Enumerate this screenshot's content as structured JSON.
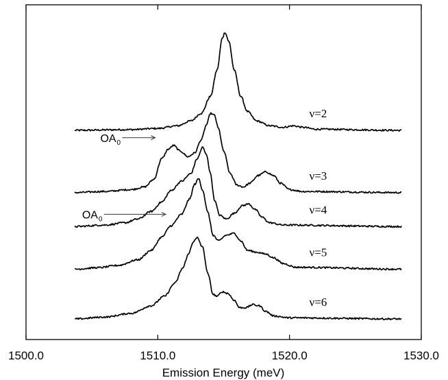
{
  "chart_data": {
    "type": "line",
    "title": "",
    "xlabel": "Emission Energy (meV)",
    "ylabel": "",
    "xlim": [
      1500.0,
      1530.0
    ],
    "x_ticks": [
      "1500.0",
      "1510.0",
      "1520.0",
      "1530.0"
    ],
    "x_tick_values": [
      1500.0,
      1510.0,
      1520.0,
      1530.0
    ],
    "grid": false,
    "legend": "none",
    "line_color": "#000000",
    "series": [
      {
        "name": "ν=2",
        "baseline": 5.0,
        "points": [
          [
            1503.7,
            0
          ],
          [
            1508.0,
            0.02
          ],
          [
            1510.0,
            0.05
          ],
          [
            1511.5,
            0.12
          ],
          [
            1512.5,
            0.25
          ],
          [
            1513.3,
            0.45
          ],
          [
            1514.0,
            0.9
          ],
          [
            1514.5,
            1.6
          ],
          [
            1514.9,
            2.45
          ],
          [
            1515.1,
            2.6
          ],
          [
            1515.4,
            2.35
          ],
          [
            1515.8,
            1.6
          ],
          [
            1516.3,
            0.9
          ],
          [
            1516.8,
            0.5
          ],
          [
            1517.5,
            0.25
          ],
          [
            1518.5,
            0.12
          ],
          [
            1519.5,
            0.08
          ],
          [
            1520.3,
            0.12
          ],
          [
            1521.0,
            0.08
          ],
          [
            1522.0,
            0.03
          ],
          [
            1528.5,
            0
          ]
        ]
      },
      {
        "name": "ν=3",
        "baseline": 3.35,
        "points": [
          [
            1503.7,
            0
          ],
          [
            1506.0,
            0.03
          ],
          [
            1508.0,
            0.08
          ],
          [
            1509.0,
            0.15
          ],
          [
            1509.7,
            0.35
          ],
          [
            1510.3,
            0.9
          ],
          [
            1510.8,
            1.15
          ],
          [
            1511.2,
            1.25
          ],
          [
            1511.7,
            1.1
          ],
          [
            1512.3,
            0.95
          ],
          [
            1512.8,
            1.05
          ],
          [
            1513.3,
            1.4
          ],
          [
            1513.7,
            1.8
          ],
          [
            1514.0,
            2.1
          ],
          [
            1514.3,
            2.05
          ],
          [
            1514.6,
            1.7
          ],
          [
            1515.0,
            1.1
          ],
          [
            1515.5,
            0.5
          ],
          [
            1516.0,
            0.2
          ],
          [
            1516.5,
            0.15
          ],
          [
            1517.0,
            0.25
          ],
          [
            1517.6,
            0.45
          ],
          [
            1518.2,
            0.55
          ],
          [
            1518.8,
            0.45
          ],
          [
            1519.3,
            0.25
          ],
          [
            1520.0,
            0.08
          ],
          [
            1521.0,
            0.03
          ],
          [
            1528.5,
            0
          ]
        ]
      },
      {
        "name": "ν=4",
        "baseline": 2.45,
        "points": [
          [
            1503.7,
            0
          ],
          [
            1506.0,
            0.04
          ],
          [
            1507.5,
            0.1
          ],
          [
            1508.5,
            0.2
          ],
          [
            1509.5,
            0.4
          ],
          [
            1510.3,
            0.65
          ],
          [
            1511.0,
            0.95
          ],
          [
            1511.8,
            1.2
          ],
          [
            1512.5,
            1.4
          ],
          [
            1513.0,
            1.8
          ],
          [
            1513.4,
            2.1
          ],
          [
            1513.7,
            1.9
          ],
          [
            1514.0,
            1.4
          ],
          [
            1514.3,
            0.7
          ],
          [
            1514.7,
            0.3
          ],
          [
            1515.2,
            0.2
          ],
          [
            1515.8,
            0.35
          ],
          [
            1516.4,
            0.55
          ],
          [
            1516.9,
            0.6
          ],
          [
            1517.4,
            0.45
          ],
          [
            1517.9,
            0.25
          ],
          [
            1518.5,
            0.1
          ],
          [
            1519.5,
            0.04
          ],
          [
            1528.5,
            0
          ]
        ]
      },
      {
        "name": "ν=5",
        "baseline": 1.32,
        "points": [
          [
            1503.7,
            0
          ],
          [
            1505.5,
            0.04
          ],
          [
            1507.0,
            0.1
          ],
          [
            1508.5,
            0.25
          ],
          [
            1509.5,
            0.5
          ],
          [
            1510.3,
            0.85
          ],
          [
            1511.0,
            1.15
          ],
          [
            1511.8,
            1.45
          ],
          [
            1512.4,
            1.85
          ],
          [
            1512.8,
            2.25
          ],
          [
            1513.1,
            2.4
          ],
          [
            1513.4,
            2.1
          ],
          [
            1513.8,
            1.5
          ],
          [
            1514.2,
            0.9
          ],
          [
            1514.6,
            0.75
          ],
          [
            1515.2,
            0.9
          ],
          [
            1515.8,
            0.95
          ],
          [
            1516.3,
            0.75
          ],
          [
            1516.8,
            0.5
          ],
          [
            1517.5,
            0.45
          ],
          [
            1518.2,
            0.4
          ],
          [
            1518.8,
            0.3
          ],
          [
            1519.5,
            0.15
          ],
          [
            1520.5,
            0.05
          ],
          [
            1528.5,
            0
          ]
        ]
      },
      {
        "name": "ν=6",
        "baseline": 0,
        "points": [
          [
            1503.7,
            0
          ],
          [
            1506.0,
            0.05
          ],
          [
            1508.0,
            0.15
          ],
          [
            1509.5,
            0.35
          ],
          [
            1510.5,
            0.6
          ],
          [
            1511.3,
            0.95
          ],
          [
            1511.9,
            1.35
          ],
          [
            1512.3,
            1.7
          ],
          [
            1512.7,
            2.05
          ],
          [
            1513.0,
            2.15
          ],
          [
            1513.4,
            1.9
          ],
          [
            1513.8,
            1.2
          ],
          [
            1514.2,
            0.65
          ],
          [
            1514.5,
            0.6
          ],
          [
            1514.9,
            0.72
          ],
          [
            1515.3,
            0.68
          ],
          [
            1515.8,
            0.5
          ],
          [
            1516.2,
            0.3
          ],
          [
            1516.7,
            0.3
          ],
          [
            1517.2,
            0.38
          ],
          [
            1517.7,
            0.35
          ],
          [
            1518.2,
            0.2
          ],
          [
            1518.8,
            0.08
          ],
          [
            1520.0,
            0.03
          ],
          [
            1528.5,
            0
          ]
        ]
      }
    ],
    "annotations": [
      {
        "text": "OA",
        "subscript": "0",
        "points_to_series": "ν=3",
        "arrow_to_x": 1509.8
      },
      {
        "text": "OA",
        "subscript": "0",
        "points_to_series": "ν=5",
        "arrow_to_x": 1510.6
      }
    ]
  }
}
